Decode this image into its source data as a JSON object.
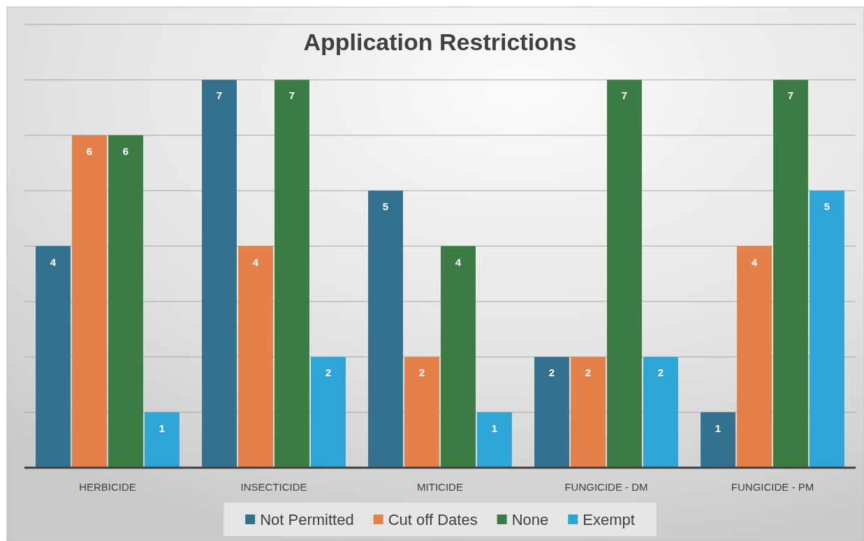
{
  "chart_data": {
    "type": "bar",
    "title": "Application Restrictions",
    "categories": [
      "HERBICIDE",
      "INSECTICIDE",
      "MITICIDE",
      "FUNGICIDE - DM",
      "FUNGICIDE - PM"
    ],
    "series": [
      {
        "name": "Not Permitted",
        "color": "#33728f",
        "values": [
          4,
          7,
          5,
          2,
          1
        ]
      },
      {
        "name": "Cut off Dates",
        "color": "#e5804a",
        "values": [
          6,
          4,
          2,
          2,
          4
        ]
      },
      {
        "name": "None",
        "color": "#3a7c43",
        "values": [
          6,
          7,
          4,
          7,
          7
        ]
      },
      {
        "name": "Exempt",
        "color": "#2ea5d7",
        "values": [
          1,
          2,
          1,
          2,
          5
        ]
      }
    ],
    "ylim": [
      0,
      8
    ],
    "yticks": [
      {
        "value": 0,
        "label": null
      },
      {
        "value": 1,
        "label": null
      },
      {
        "value": 2,
        "label": null
      },
      {
        "value": 3,
        "label": null
      },
      {
        "value": 4,
        "label": null
      },
      {
        "value": 5,
        "label": null
      },
      {
        "value": 6,
        "label": null
      },
      {
        "value": 7,
        "label": null
      },
      {
        "value": 8,
        "label": null
      }
    ],
    "grid": "y",
    "legend": "bottom",
    "data_labels": true,
    "tick_labels": "x"
  }
}
